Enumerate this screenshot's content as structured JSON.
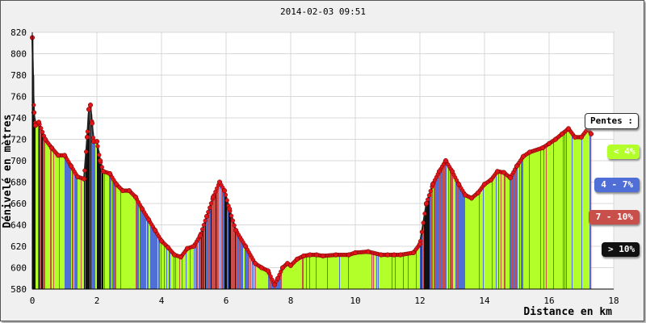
{
  "chart_data": {
    "type": "area",
    "title": "2014-02-03 09:51",
    "xlabel": "Distance en km",
    "ylabel": "Dénivelé en mètres",
    "xlim": [
      0,
      18
    ],
    "ylim": [
      580,
      820
    ],
    "xticks": [
      "0",
      "2",
      "4",
      "6",
      "8",
      "10",
      "12",
      "14",
      "16",
      "18"
    ],
    "yticks": [
      "580",
      "600",
      "620",
      "640",
      "660",
      "680",
      "700",
      "720",
      "740",
      "760",
      "780",
      "800",
      "820"
    ],
    "grid": true,
    "profile": {
      "x": [
        0,
        0.05,
        0.1,
        0.2,
        0.4,
        0.6,
        0.8,
        1.0,
        1.2,
        1.4,
        1.6,
        1.7,
        1.75,
        1.8,
        1.85,
        1.9,
        2.0,
        2.1,
        2.2,
        2.4,
        2.6,
        2.8,
        3.0,
        3.2,
        3.4,
        3.6,
        3.8,
        4.0,
        4.2,
        4.4,
        4.6,
        4.8,
        5.0,
        5.2,
        5.4,
        5.6,
        5.8,
        5.95,
        6.1,
        6.3,
        6.6,
        6.9,
        7.1,
        7.3,
        7.5,
        7.6,
        7.75,
        7.9,
        8.0,
        8.2,
        8.4,
        8.6,
        8.8,
        9.0,
        9.4,
        9.8,
        10.0,
        10.4,
        10.8,
        11.0,
        11.2,
        11.4,
        11.8,
        12.0,
        12.2,
        12.4,
        12.6,
        12.8,
        13.0,
        13.2,
        13.4,
        13.6,
        13.8,
        14.0,
        14.2,
        14.4,
        14.6,
        14.8,
        15.0,
        15.2,
        15.4,
        15.8,
        16.0,
        16.2,
        16.4,
        16.6,
        16.8,
        17.0,
        17.2,
        17.3
      ],
      "y": [
        815,
        745,
        733,
        736,
        720,
        712,
        705,
        705,
        695,
        685,
        683,
        722,
        748,
        752,
        735,
        718,
        718,
        700,
        690,
        688,
        678,
        672,
        672,
        666,
        655,
        645,
        635,
        625,
        619,
        612,
        610,
        618,
        620,
        630,
        648,
        666,
        680,
        672,
        655,
        635,
        620,
        604,
        600,
        597,
        584,
        590,
        600,
        604,
        602,
        608,
        611,
        612,
        612,
        611,
        612,
        612,
        614,
        615,
        612,
        612,
        612,
        612,
        614,
        622,
        660,
        678,
        690,
        700,
        690,
        678,
        668,
        665,
        670,
        678,
        682,
        690,
        689,
        684,
        695,
        704,
        708,
        712,
        716,
        720,
        725,
        730,
        722,
        722,
        730,
        725
      ]
    },
    "fill_colors": {
      "lt4": "#b3ff2a",
      "4to7": "#4f6fd6",
      "7to10": "#c9504a",
      "gt10": "#111111",
      "marker": "#e0151a",
      "line": "#222222"
    },
    "legend_title": "Pentes :",
    "legend": [
      "< 4%",
      "4 - 7%",
      "7 - 10%",
      "> 10%"
    ],
    "legend_placement": "right"
  }
}
